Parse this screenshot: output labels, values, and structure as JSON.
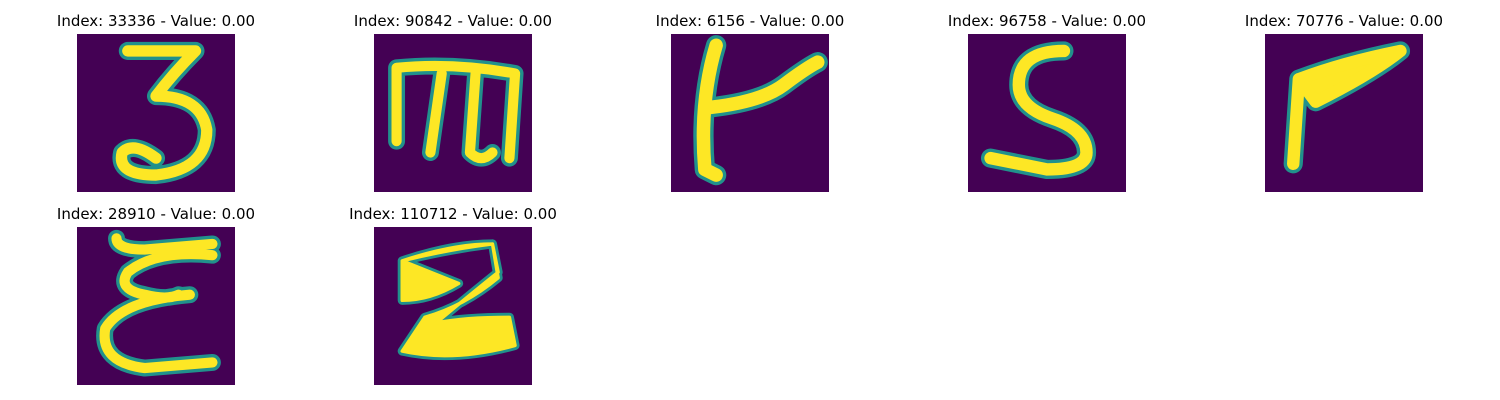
{
  "colors": {
    "background": "#440154",
    "foreground": "#fde725",
    "edge": "#21918c"
  },
  "panels": [
    {
      "title": "Index: 33336 - Value: 0.00",
      "glyph": "digit-3"
    },
    {
      "title": "Index: 90842 - Value: 0.00",
      "glyph": "letter-m"
    },
    {
      "title": "Index: 6156 - Value: 0.00",
      "glyph": "letter-t"
    },
    {
      "title": "Index: 96758 - Value: 0.00",
      "glyph": "letter-s"
    },
    {
      "title": "Index: 70776 - Value: 0.00",
      "glyph": "letter-p"
    },
    {
      "title": "Index: 28910 - Value: 0.00",
      "glyph": "letter-e"
    },
    {
      "title": "Index: 110712 - Value: 0.00",
      "glyph": "letter-z"
    }
  ]
}
